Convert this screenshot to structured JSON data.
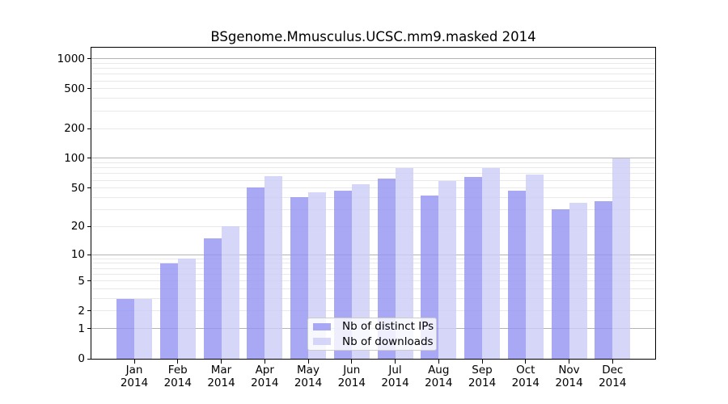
{
  "chart_data": {
    "type": "bar",
    "title": "BSgenome.Mmusculus.UCSC.mm9.masked 2014",
    "categories": [
      "Jan",
      "Feb",
      "Mar",
      "Apr",
      "May",
      "Jun",
      "Jul",
      "Aug",
      "Sep",
      "Oct",
      "Nov",
      "Dec"
    ],
    "category_year": "2014",
    "series": [
      {
        "name": "Nb of distinct IPs",
        "color": "rgba(146,146,243,0.8)",
        "values": [
          3,
          8,
          15,
          51,
          40,
          47,
          62,
          42,
          65,
          47,
          30,
          37
        ]
      },
      {
        "name": "Nb of downloads",
        "color": "rgba(204,204,248,0.8)",
        "values": [
          3,
          9,
          20,
          66,
          45,
          55,
          80,
          59,
          80,
          68,
          35,
          100
        ]
      }
    ],
    "y_axis": {
      "ticks": [
        0,
        1,
        2,
        5,
        10,
        20,
        50,
        100,
        200,
        500,
        1000
      ],
      "scale": "log10(1+v)",
      "ylim": [
        0,
        1285
      ]
    },
    "grid": {
      "major_lines": [
        1,
        10,
        100,
        1000
      ],
      "minor_lines": [
        2,
        3,
        4,
        5,
        6,
        7,
        8,
        9,
        20,
        30,
        40,
        50,
        60,
        70,
        80,
        90,
        200,
        300,
        400,
        500,
        600,
        700,
        800,
        900
      ],
      "major_color": "#b4b4b4",
      "minor_color": "#e9e9e9"
    },
    "legend": {
      "position": "lower center"
    },
    "xlabel": "",
    "ylabel": ""
  }
}
